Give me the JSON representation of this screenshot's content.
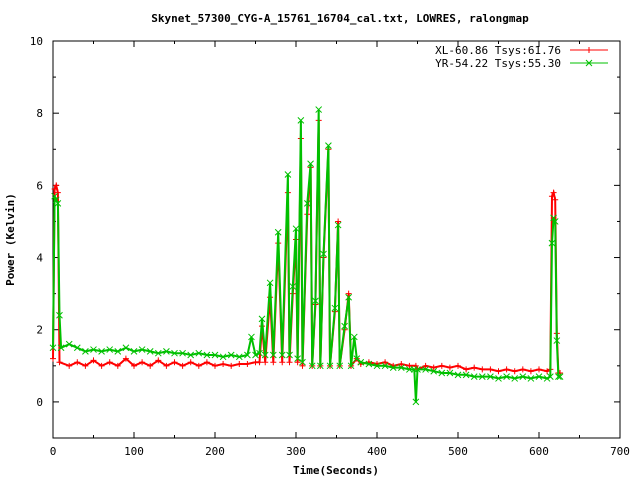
{
  "chart_data": {
    "type": "line",
    "title": "Skynet_57300_CYG-A_15761_16704_cal.txt, LOWRES, ralongmap",
    "xlabel": "Time(Seconds)",
    "ylabel": "Power (Kelvin)",
    "xlim": [
      0,
      700
    ],
    "ylim": [
      -1,
      10
    ],
    "xticks": [
      0,
      100,
      200,
      300,
      400,
      500,
      600,
      700
    ],
    "yticks": [
      0,
      2,
      4,
      6,
      8,
      10
    ],
    "grid": false,
    "legend_position": "top-right",
    "series": [
      {
        "name": "XL-60.86 Tsys:61.76",
        "color": "#ff0000",
        "marker": "+",
        "points": [
          [
            0,
            1.2
          ],
          [
            2,
            5.9
          ],
          [
            4,
            6.0
          ],
          [
            6,
            5.8
          ],
          [
            8,
            1.1
          ],
          [
            20,
            1.0
          ],
          [
            30,
            1.1
          ],
          [
            40,
            1.0
          ],
          [
            50,
            1.15
          ],
          [
            60,
            1.0
          ],
          [
            70,
            1.1
          ],
          [
            80,
            1.0
          ],
          [
            90,
            1.2
          ],
          [
            100,
            1.0
          ],
          [
            110,
            1.1
          ],
          [
            120,
            1.0
          ],
          [
            130,
            1.15
          ],
          [
            140,
            1.0
          ],
          [
            150,
            1.1
          ],
          [
            160,
            1.0
          ],
          [
            170,
            1.1
          ],
          [
            180,
            1.0
          ],
          [
            190,
            1.1
          ],
          [
            200,
            1.0
          ],
          [
            210,
            1.05
          ],
          [
            220,
            1.0
          ],
          [
            230,
            1.05
          ],
          [
            240,
            1.05
          ],
          [
            250,
            1.1
          ],
          [
            255,
            1.1
          ],
          [
            258,
            2.1
          ],
          [
            262,
            1.1
          ],
          [
            268,
            2.9
          ],
          [
            272,
            1.1
          ],
          [
            278,
            4.4
          ],
          [
            283,
            1.1
          ],
          [
            290,
            5.8
          ],
          [
            292,
            1.1
          ],
          [
            296,
            3.0
          ],
          [
            300,
            4.5
          ],
          [
            302,
            1.1
          ],
          [
            306,
            7.3
          ],
          [
            308,
            1.0
          ],
          [
            314,
            5.2
          ],
          [
            318,
            6.5
          ],
          [
            320,
            1.0
          ],
          [
            324,
            2.7
          ],
          [
            328,
            7.8
          ],
          [
            330,
            1.0
          ],
          [
            334,
            4.0
          ],
          [
            340,
            7.0
          ],
          [
            342,
            1.0
          ],
          [
            348,
            2.5
          ],
          [
            352,
            5.0
          ],
          [
            354,
            1.0
          ],
          [
            360,
            2.0
          ],
          [
            365,
            3.0
          ],
          [
            368,
            1.0
          ],
          [
            375,
            1.2
          ],
          [
            380,
            1.05
          ],
          [
            390,
            1.1
          ],
          [
            400,
            1.05
          ],
          [
            410,
            1.1
          ],
          [
            420,
            1.0
          ],
          [
            430,
            1.05
          ],
          [
            440,
            1.0
          ],
          [
            448,
            1.0
          ],
          [
            450,
            0.9
          ],
          [
            460,
            1.0
          ],
          [
            470,
            0.95
          ],
          [
            480,
            1.0
          ],
          [
            490,
            0.95
          ],
          [
            500,
            1.0
          ],
          [
            510,
            0.9
          ],
          [
            520,
            0.95
          ],
          [
            530,
            0.9
          ],
          [
            540,
            0.9
          ],
          [
            550,
            0.85
          ],
          [
            560,
            0.9
          ],
          [
            570,
            0.85
          ],
          [
            580,
            0.9
          ],
          [
            590,
            0.85
          ],
          [
            600,
            0.9
          ],
          [
            610,
            0.85
          ],
          [
            614,
            0.9
          ],
          [
            616,
            5.7
          ],
          [
            618,
            5.8
          ],
          [
            620,
            5.6
          ],
          [
            622,
            1.9
          ],
          [
            624,
            0.8
          ],
          [
            626,
            0.8
          ]
        ]
      },
      {
        "name": "YR-54.22 Tsys:55.30",
        "color": "#00c000",
        "marker": "x",
        "points": [
          [
            0,
            1.5
          ],
          [
            2,
            5.7
          ],
          [
            4,
            5.6
          ],
          [
            6,
            5.5
          ],
          [
            8,
            2.4
          ],
          [
            10,
            1.5
          ],
          [
            20,
            1.6
          ],
          [
            30,
            1.5
          ],
          [
            40,
            1.4
          ],
          [
            50,
            1.45
          ],
          [
            60,
            1.4
          ],
          [
            70,
            1.45
          ],
          [
            80,
            1.4
          ],
          [
            90,
            1.5
          ],
          [
            100,
            1.4
          ],
          [
            110,
            1.45
          ],
          [
            120,
            1.4
          ],
          [
            130,
            1.35
          ],
          [
            140,
            1.4
          ],
          [
            150,
            1.35
          ],
          [
            160,
            1.35
          ],
          [
            170,
            1.3
          ],
          [
            180,
            1.35
          ],
          [
            190,
            1.3
          ],
          [
            200,
            1.3
          ],
          [
            210,
            1.25
          ],
          [
            220,
            1.3
          ],
          [
            230,
            1.25
          ],
          [
            240,
            1.3
          ],
          [
            245,
            1.8
          ],
          [
            250,
            1.3
          ],
          [
            255,
            1.35
          ],
          [
            258,
            2.3
          ],
          [
            262,
            1.3
          ],
          [
            268,
            3.3
          ],
          [
            272,
            1.3
          ],
          [
            278,
            4.7
          ],
          [
            283,
            1.3
          ],
          [
            290,
            6.3
          ],
          [
            292,
            1.3
          ],
          [
            296,
            3.2
          ],
          [
            300,
            4.8
          ],
          [
            302,
            1.2
          ],
          [
            306,
            7.8
          ],
          [
            308,
            1.1
          ],
          [
            314,
            5.5
          ],
          [
            318,
            6.6
          ],
          [
            320,
            1.0
          ],
          [
            324,
            2.8
          ],
          [
            328,
            8.1
          ],
          [
            330,
            1.0
          ],
          [
            334,
            4.1
          ],
          [
            340,
            7.1
          ],
          [
            342,
            1.0
          ],
          [
            348,
            2.6
          ],
          [
            352,
            4.9
          ],
          [
            354,
            1.0
          ],
          [
            360,
            2.1
          ],
          [
            365,
            2.9
          ],
          [
            368,
            1.0
          ],
          [
            372,
            1.8
          ],
          [
            375,
            1.2
          ],
          [
            380,
            1.1
          ],
          [
            390,
            1.05
          ],
          [
            400,
            1.0
          ],
          [
            410,
            1.0
          ],
          [
            420,
            0.95
          ],
          [
            430,
            0.95
          ],
          [
            440,
            0.9
          ],
          [
            446,
            0.9
          ],
          [
            448,
            0.0
          ],
          [
            450,
            0.9
          ],
          [
            460,
            0.9
          ],
          [
            470,
            0.85
          ],
          [
            480,
            0.8
          ],
          [
            490,
            0.8
          ],
          [
            500,
            0.75
          ],
          [
            510,
            0.75
          ],
          [
            520,
            0.7
          ],
          [
            530,
            0.7
          ],
          [
            540,
            0.7
          ],
          [
            550,
            0.65
          ],
          [
            560,
            0.7
          ],
          [
            570,
            0.65
          ],
          [
            580,
            0.7
          ],
          [
            590,
            0.65
          ],
          [
            600,
            0.7
          ],
          [
            610,
            0.65
          ],
          [
            614,
            0.7
          ],
          [
            616,
            4.4
          ],
          [
            618,
            5.1
          ],
          [
            620,
            5.0
          ],
          [
            622,
            1.7
          ],
          [
            624,
            0.7
          ],
          [
            626,
            0.7
          ]
        ]
      }
    ]
  }
}
